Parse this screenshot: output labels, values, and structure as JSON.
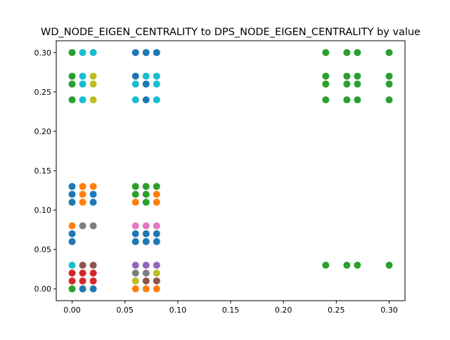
{
  "chart_data": {
    "type": "scatter",
    "title": "WD_NODE_EIGEN_CENTRALITY to DPS_NODE_EIGEN_CENTRALITY by value",
    "xlabel": "",
    "ylabel": "",
    "xlim": [
      -0.015,
      0.315
    ],
    "ylim": [
      -0.015,
      0.315
    ],
    "x_ticks": [
      0.0,
      0.05,
      0.1,
      0.15,
      0.2,
      0.25,
      0.3
    ],
    "x_tick_labels": [
      "0.00",
      "0.05",
      "0.10",
      "0.15",
      "0.20",
      "0.25",
      "0.30"
    ],
    "y_ticks": [
      0.0,
      0.05,
      0.1,
      0.15,
      0.2,
      0.25,
      0.3
    ],
    "y_tick_labels": [
      "0.00",
      "0.05",
      "0.10",
      "0.15",
      "0.20",
      "0.25",
      "0.30"
    ],
    "grid": false,
    "legend": "none",
    "colors": {
      "blue": "#1f77b4",
      "orange": "#ff7f0e",
      "green": "#2ca02c",
      "red": "#d62728",
      "purple": "#9467bd",
      "brown": "#8c564b",
      "pink": "#e377c2",
      "gray": "#7f7f7f",
      "olive": "#bcbd22",
      "cyan": "#17becf"
    },
    "points": [
      {
        "x": 0.0,
        "y": 0.3,
        "c": "green"
      },
      {
        "x": 0.01,
        "y": 0.3,
        "c": "cyan"
      },
      {
        "x": 0.02,
        "y": 0.3,
        "c": "cyan"
      },
      {
        "x": 0.0,
        "y": 0.27,
        "c": "green"
      },
      {
        "x": 0.01,
        "y": 0.27,
        "c": "cyan"
      },
      {
        "x": 0.02,
        "y": 0.27,
        "c": "olive"
      },
      {
        "x": 0.0,
        "y": 0.26,
        "c": "green"
      },
      {
        "x": 0.01,
        "y": 0.26,
        "c": "cyan"
      },
      {
        "x": 0.02,
        "y": 0.26,
        "c": "olive"
      },
      {
        "x": 0.0,
        "y": 0.24,
        "c": "green"
      },
      {
        "x": 0.01,
        "y": 0.24,
        "c": "cyan"
      },
      {
        "x": 0.02,
        "y": 0.24,
        "c": "olive"
      },
      {
        "x": 0.06,
        "y": 0.3,
        "c": "blue"
      },
      {
        "x": 0.07,
        "y": 0.3,
        "c": "blue"
      },
      {
        "x": 0.08,
        "y": 0.3,
        "c": "blue"
      },
      {
        "x": 0.06,
        "y": 0.27,
        "c": "blue"
      },
      {
        "x": 0.07,
        "y": 0.27,
        "c": "cyan"
      },
      {
        "x": 0.08,
        "y": 0.27,
        "c": "cyan"
      },
      {
        "x": 0.06,
        "y": 0.26,
        "c": "cyan"
      },
      {
        "x": 0.07,
        "y": 0.26,
        "c": "blue"
      },
      {
        "x": 0.08,
        "y": 0.26,
        "c": "cyan"
      },
      {
        "x": 0.06,
        "y": 0.24,
        "c": "cyan"
      },
      {
        "x": 0.07,
        "y": 0.24,
        "c": "blue"
      },
      {
        "x": 0.08,
        "y": 0.24,
        "c": "cyan"
      },
      {
        "x": 0.24,
        "y": 0.3,
        "c": "green"
      },
      {
        "x": 0.26,
        "y": 0.3,
        "c": "green"
      },
      {
        "x": 0.27,
        "y": 0.3,
        "c": "green"
      },
      {
        "x": 0.3,
        "y": 0.3,
        "c": "green"
      },
      {
        "x": 0.24,
        "y": 0.27,
        "c": "green"
      },
      {
        "x": 0.26,
        "y": 0.27,
        "c": "green"
      },
      {
        "x": 0.27,
        "y": 0.27,
        "c": "green"
      },
      {
        "x": 0.3,
        "y": 0.27,
        "c": "green"
      },
      {
        "x": 0.24,
        "y": 0.26,
        "c": "green"
      },
      {
        "x": 0.26,
        "y": 0.26,
        "c": "green"
      },
      {
        "x": 0.27,
        "y": 0.26,
        "c": "green"
      },
      {
        "x": 0.3,
        "y": 0.26,
        "c": "green"
      },
      {
        "x": 0.24,
        "y": 0.24,
        "c": "green"
      },
      {
        "x": 0.26,
        "y": 0.24,
        "c": "green"
      },
      {
        "x": 0.27,
        "y": 0.24,
        "c": "green"
      },
      {
        "x": 0.3,
        "y": 0.24,
        "c": "green"
      },
      {
        "x": 0.0,
        "y": 0.13,
        "c": "blue"
      },
      {
        "x": 0.01,
        "y": 0.13,
        "c": "orange"
      },
      {
        "x": 0.02,
        "y": 0.13,
        "c": "orange"
      },
      {
        "x": 0.0,
        "y": 0.12,
        "c": "blue"
      },
      {
        "x": 0.01,
        "y": 0.12,
        "c": "orange"
      },
      {
        "x": 0.02,
        "y": 0.12,
        "c": "blue"
      },
      {
        "x": 0.0,
        "y": 0.11,
        "c": "blue"
      },
      {
        "x": 0.01,
        "y": 0.11,
        "c": "orange"
      },
      {
        "x": 0.02,
        "y": 0.11,
        "c": "blue"
      },
      {
        "x": 0.0,
        "y": 0.08,
        "c": "orange"
      },
      {
        "x": 0.01,
        "y": 0.08,
        "c": "gray"
      },
      {
        "x": 0.02,
        "y": 0.08,
        "c": "gray"
      },
      {
        "x": 0.0,
        "y": 0.07,
        "c": "blue"
      },
      {
        "x": 0.0,
        "y": 0.06,
        "c": "blue"
      },
      {
        "x": 0.06,
        "y": 0.13,
        "c": "green"
      },
      {
        "x": 0.07,
        "y": 0.13,
        "c": "green"
      },
      {
        "x": 0.08,
        "y": 0.13,
        "c": "green"
      },
      {
        "x": 0.06,
        "y": 0.12,
        "c": "green"
      },
      {
        "x": 0.07,
        "y": 0.12,
        "c": "green"
      },
      {
        "x": 0.08,
        "y": 0.12,
        "c": "orange"
      },
      {
        "x": 0.06,
        "y": 0.11,
        "c": "orange"
      },
      {
        "x": 0.07,
        "y": 0.11,
        "c": "green"
      },
      {
        "x": 0.08,
        "y": 0.11,
        "c": "orange"
      },
      {
        "x": 0.06,
        "y": 0.08,
        "c": "pink"
      },
      {
        "x": 0.07,
        "y": 0.08,
        "c": "pink"
      },
      {
        "x": 0.08,
        "y": 0.08,
        "c": "pink"
      },
      {
        "x": 0.06,
        "y": 0.07,
        "c": "blue"
      },
      {
        "x": 0.07,
        "y": 0.07,
        "c": "blue"
      },
      {
        "x": 0.08,
        "y": 0.07,
        "c": "blue"
      },
      {
        "x": 0.06,
        "y": 0.06,
        "c": "blue"
      },
      {
        "x": 0.07,
        "y": 0.06,
        "c": "blue"
      },
      {
        "x": 0.08,
        "y": 0.06,
        "c": "blue"
      },
      {
        "x": 0.0,
        "y": 0.03,
        "c": "cyan"
      },
      {
        "x": 0.01,
        "y": 0.03,
        "c": "brown"
      },
      {
        "x": 0.02,
        "y": 0.03,
        "c": "brown"
      },
      {
        "x": 0.0,
        "y": 0.02,
        "c": "red"
      },
      {
        "x": 0.01,
        "y": 0.02,
        "c": "red"
      },
      {
        "x": 0.02,
        "y": 0.02,
        "c": "red"
      },
      {
        "x": 0.0,
        "y": 0.01,
        "c": "red"
      },
      {
        "x": 0.01,
        "y": 0.01,
        "c": "red"
      },
      {
        "x": 0.02,
        "y": 0.01,
        "c": "red"
      },
      {
        "x": 0.0,
        "y": 0.0,
        "c": "green"
      },
      {
        "x": 0.01,
        "y": 0.0,
        "c": "blue"
      },
      {
        "x": 0.02,
        "y": 0.0,
        "c": "blue"
      },
      {
        "x": 0.06,
        "y": 0.03,
        "c": "purple"
      },
      {
        "x": 0.07,
        "y": 0.03,
        "c": "purple"
      },
      {
        "x": 0.08,
        "y": 0.03,
        "c": "purple"
      },
      {
        "x": 0.06,
        "y": 0.02,
        "c": "gray"
      },
      {
        "x": 0.07,
        "y": 0.02,
        "c": "gray"
      },
      {
        "x": 0.08,
        "y": 0.02,
        "c": "olive"
      },
      {
        "x": 0.06,
        "y": 0.01,
        "c": "olive"
      },
      {
        "x": 0.07,
        "y": 0.01,
        "c": "brown"
      },
      {
        "x": 0.08,
        "y": 0.01,
        "c": "brown"
      },
      {
        "x": 0.06,
        "y": 0.0,
        "c": "orange"
      },
      {
        "x": 0.07,
        "y": 0.0,
        "c": "orange"
      },
      {
        "x": 0.08,
        "y": 0.0,
        "c": "orange"
      },
      {
        "x": 0.24,
        "y": 0.03,
        "c": "green"
      },
      {
        "x": 0.26,
        "y": 0.03,
        "c": "green"
      },
      {
        "x": 0.27,
        "y": 0.03,
        "c": "green"
      },
      {
        "x": 0.3,
        "y": 0.03,
        "c": "green"
      }
    ]
  }
}
